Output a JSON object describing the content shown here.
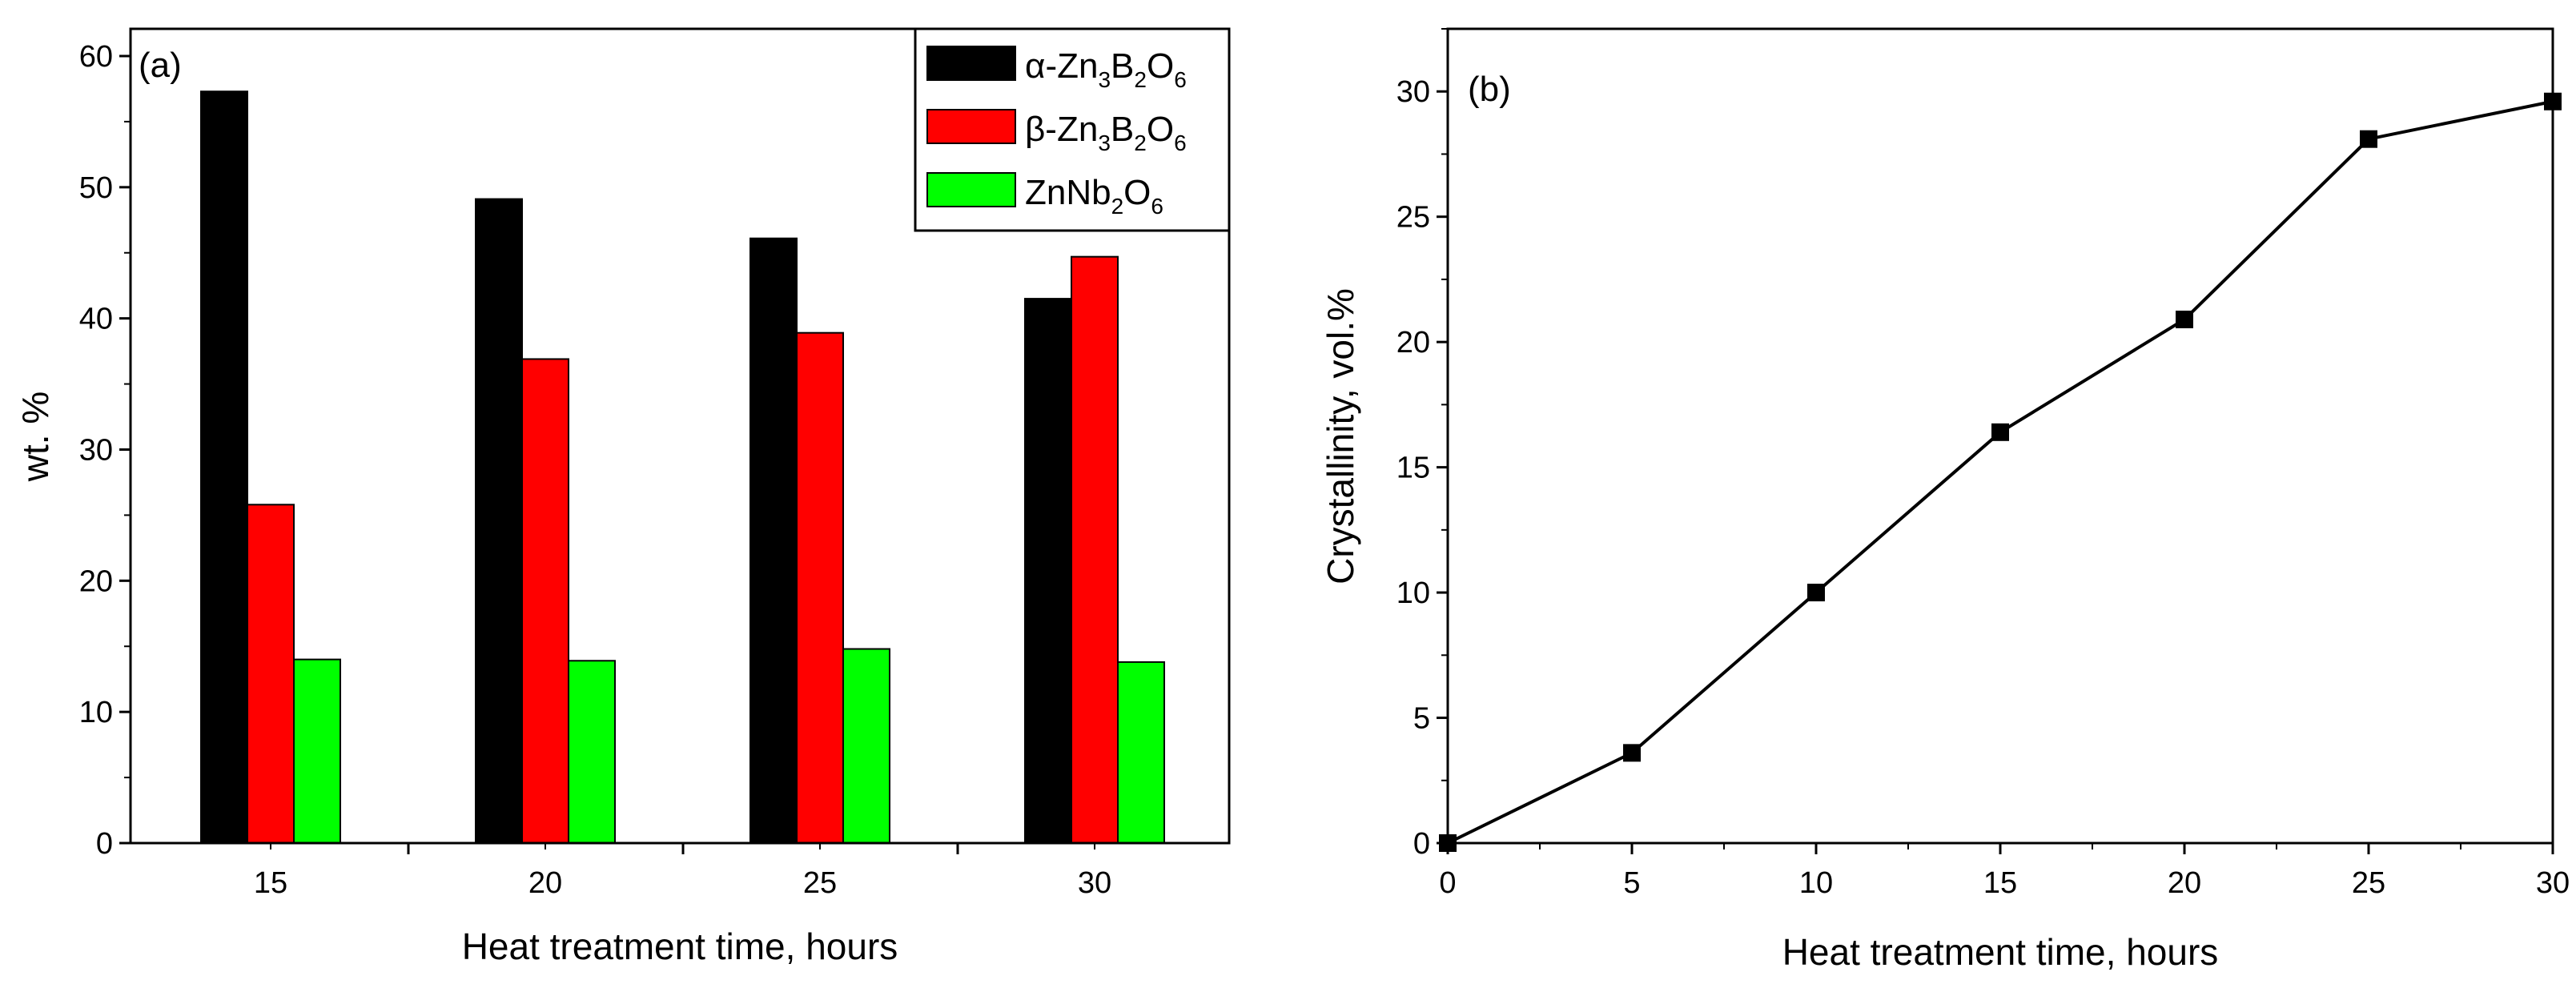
{
  "chart_data": [
    {
      "type": "bar",
      "panel_label": "(a)",
      "categories": [
        "15",
        "20",
        "25",
        "30"
      ],
      "series": [
        {
          "name": "α-Zn3B2O6",
          "color": "#000000",
          "values": [
            57.3,
            49.1,
            46.1,
            41.5
          ],
          "legend_label": {
            "pre": "α-Zn",
            "s1": "3",
            "mid1": "B",
            "s2": "2",
            "mid2": "O",
            "s3": "6"
          }
        },
        {
          "name": "β-Zn3B2O6",
          "color": "#ff0000",
          "values": [
            25.8,
            36.9,
            38.9,
            44.7
          ],
          "legend_label": {
            "pre": "β-Zn",
            "s1": "3",
            "mid1": "B",
            "s2": "2",
            "mid2": "O",
            "s3": "6"
          }
        },
        {
          "name": "ZnNb2O6",
          "color": "#00ff00",
          "values": [
            14.0,
            13.9,
            14.8,
            13.8
          ],
          "legend_label": {
            "pre": "ZnNb",
            "s1": "2",
            "mid1": "O",
            "s2": "6",
            "mid2": "",
            "s3": ""
          }
        }
      ],
      "xlabel": "Heat treatment time, hours",
      "ylabel": "wt. %",
      "ylim": [
        0,
        60
      ],
      "yticks": [
        "0",
        "10",
        "20",
        "30",
        "40",
        "50",
        "60"
      ],
      "legend_position": "top-right",
      "grid": false
    },
    {
      "type": "line",
      "panel_label": "(b)",
      "x": [
        0,
        5,
        10,
        15,
        20,
        25,
        30
      ],
      "y": [
        0,
        3.6,
        10.0,
        16.4,
        20.9,
        28.1,
        29.6
      ],
      "color": "#000000",
      "marker": "square",
      "xlabel": "Heat treatment time, hours",
      "ylabel": "Crystallinity, vol.%",
      "xlim": [
        0,
        30
      ],
      "ylim": [
        0,
        32.5
      ],
      "xticks": [
        "0",
        "5",
        "10",
        "15",
        "20",
        "25",
        "30"
      ],
      "yticks": [
        "0",
        "5",
        "10",
        "15",
        "20",
        "25",
        "30"
      ],
      "grid": false
    }
  ]
}
